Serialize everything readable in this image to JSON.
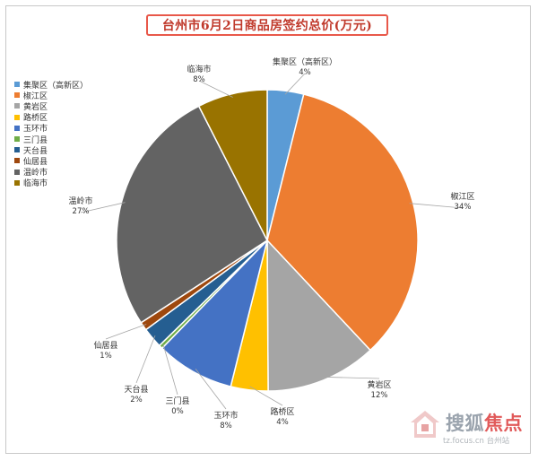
{
  "chart_data": {
    "type": "pie",
    "title": "台州市6月2日商品房签约总价(万元)",
    "start_angle_deg": 0,
    "direction": "clockwise",
    "slices": [
      {
        "name": "集聚区（高新区）",
        "label": "集聚区（高新区）",
        "pct_label": "4%",
        "value": 3.9,
        "color": "#5b9bd5"
      },
      {
        "name": "椒江区",
        "label": "椒江区",
        "pct_label": "34%",
        "value": 34.1,
        "color": "#ed7d31"
      },
      {
        "name": "黄岩区",
        "label": "黄岩区",
        "pct_label": "12%",
        "value": 11.9,
        "color": "#a5a5a5"
      },
      {
        "name": "路桥区",
        "label": "路桥区",
        "pct_label": "4%",
        "value": 4.0,
        "color": "#ffc000"
      },
      {
        "name": "玉环市",
        "label": "玉环市",
        "pct_label": "8%",
        "value": 8.4,
        "color": "#4472c4"
      },
      {
        "name": "三门县",
        "label": "三门县",
        "pct_label": "0%",
        "value": 0.4,
        "color": "#70ad47"
      },
      {
        "name": "天台县",
        "label": "天台县",
        "pct_label": "2%",
        "value": 2.2,
        "color": "#255e91"
      },
      {
        "name": "仙居县",
        "label": "仙居县",
        "pct_label": "1%",
        "value": 0.9,
        "color": "#9e480e"
      },
      {
        "name": "温岭市",
        "label": "温岭市",
        "pct_label": "27%",
        "value": 26.7,
        "color": "#636363"
      },
      {
        "name": "临海市",
        "label": "临海市",
        "pct_label": "8%",
        "value": 7.5,
        "color": "#997300"
      }
    ],
    "legend_position": "left"
  },
  "watermark": {
    "brand_part1": "搜狐",
    "brand_part2": "焦点",
    "url": "tz.focus.cn 台州站"
  }
}
